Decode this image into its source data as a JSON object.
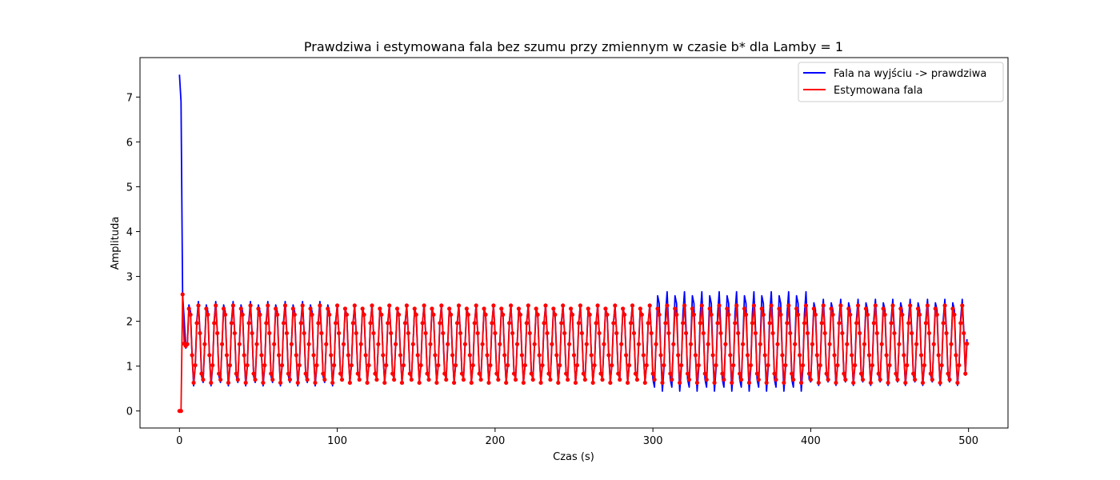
{
  "chart_data": {
    "type": "line",
    "title": "Prawdziwa i estymowana fala bez szumu przy zmiennym w czasie b* dla Lamby = 1",
    "xlabel": "Czas (s)",
    "ylabel": "Amplituda",
    "xlim": [
      -25,
      525
    ],
    "ylim": [
      -0.38,
      7.88
    ],
    "xticks": [
      0,
      100,
      200,
      300,
      400,
      500
    ],
    "yticks": [
      0,
      1,
      2,
      3,
      4,
      5,
      6,
      7
    ],
    "legend_position": "top-right",
    "grid": false,
    "series": [
      {
        "name": "Fala na wyjściu -> prawdziwa",
        "color": "#0000ff",
        "markers": false,
        "shape": "multi-sinusoid",
        "x_range": [
          0,
          499
        ],
        "step": 1,
        "start_values": [
          7.5,
          6.9,
          2.6,
          2.05,
          1.4
        ],
        "segments": [
          {
            "from": 5,
            "to": 100,
            "center": 1.5,
            "amplitude": 0.95,
            "period": 5.5
          },
          {
            "from": 100,
            "to": 300,
            "center": 1.5,
            "amplitude": 0.87,
            "period": 5.5
          },
          {
            "from": 300,
            "to": 400,
            "center": 1.55,
            "amplitude": 1.12,
            "period": 5.5
          },
          {
            "from": 400,
            "to": 499,
            "center": 1.53,
            "amplitude": 0.97,
            "period": 5.5
          }
        ],
        "end_value": 1.6
      },
      {
        "name": "Estymowana fala",
        "color": "#ff0000",
        "markers": true,
        "shape": "multi-sinusoid",
        "x_range": [
          0,
          499
        ],
        "step": 1,
        "start_values": [
          0.0,
          0.0,
          2.6,
          1.5,
          1.45
        ],
        "segments": [
          {
            "from": 5,
            "to": 499,
            "center": 1.49,
            "amplitude": 0.87,
            "period": 5.5
          }
        ],
        "end_value": 1.5
      }
    ]
  }
}
